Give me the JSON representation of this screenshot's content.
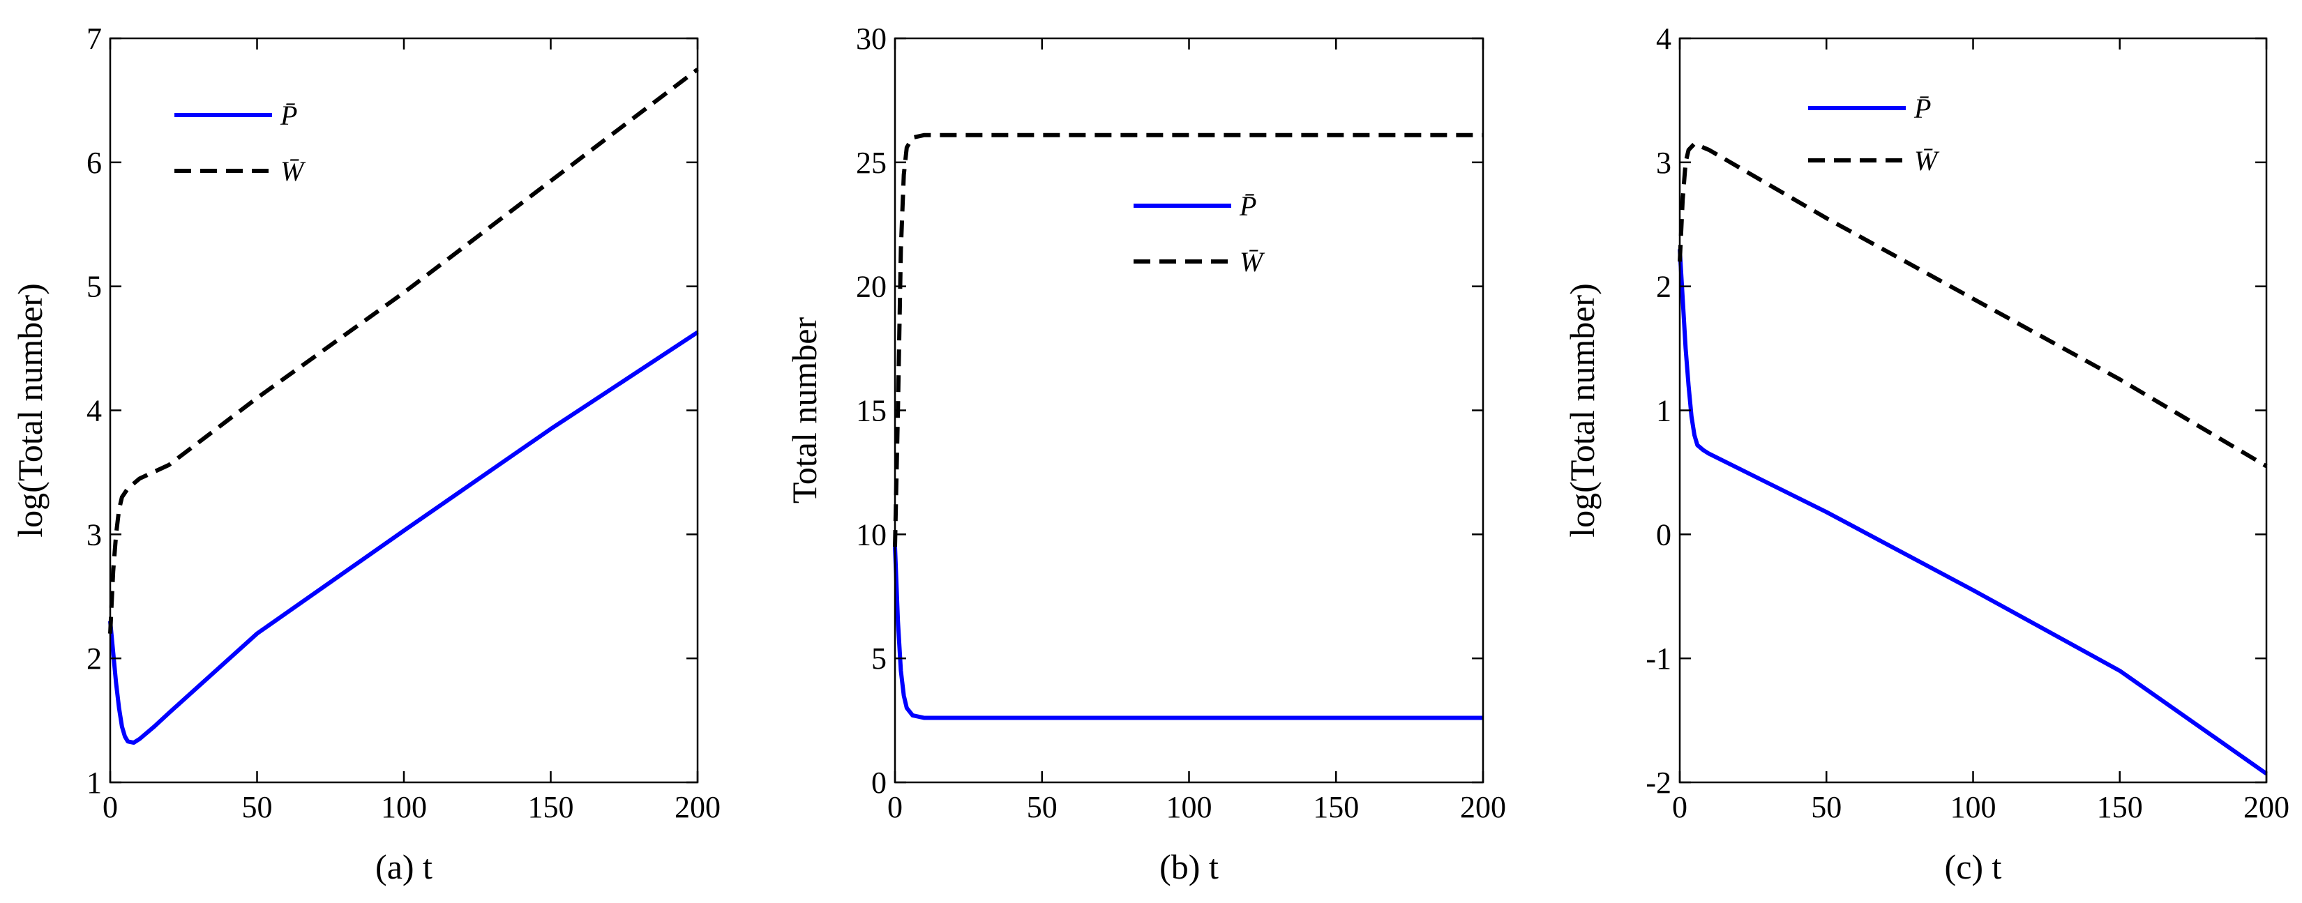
{
  "chart_data": [
    {
      "type": "line",
      "panel_label": "(a)",
      "xlabel": "(a) t",
      "ylabel": "log(Total number)",
      "xlim": [
        0,
        200
      ],
      "ylim": [
        1,
        7
      ],
      "xticks": [
        0,
        50,
        100,
        150,
        200
      ],
      "yticks": [
        1,
        2,
        3,
        4,
        5,
        6,
        7
      ],
      "grid": false,
      "legend_position": "top-left",
      "series": [
        {
          "name": "P̄",
          "color": "#0000ff",
          "style": "solid",
          "points": [
            [
              0,
              2.3
            ],
            [
              1,
              2.05
            ],
            [
              2,
              1.8
            ],
            [
              3,
              1.6
            ],
            [
              4,
              1.45
            ],
            [
              5,
              1.37
            ],
            [
              6,
              1.33
            ],
            [
              8,
              1.32
            ],
            [
              10,
              1.35
            ],
            [
              15,
              1.45
            ],
            [
              20,
              1.56
            ],
            [
              50,
              2.2
            ],
            [
              100,
              3.03
            ],
            [
              150,
              3.85
            ],
            [
              200,
              4.63
            ]
          ]
        },
        {
          "name": "W̄",
          "color": "#000000",
          "style": "dashed",
          "points": [
            [
              0,
              2.2
            ],
            [
              1,
              2.7
            ],
            [
              2,
              3.0
            ],
            [
              3,
              3.2
            ],
            [
              4,
              3.3
            ],
            [
              6,
              3.37
            ],
            [
              10,
              3.45
            ],
            [
              20,
              3.56
            ],
            [
              50,
              4.1
            ],
            [
              100,
              4.95
            ],
            [
              150,
              5.85
            ],
            [
              200,
              6.75
            ]
          ]
        }
      ]
    },
    {
      "type": "line",
      "panel_label": "(b)",
      "xlabel": "(b) t",
      "ylabel": "Total number",
      "xlim": [
        0,
        200
      ],
      "ylim": [
        0,
        30
      ],
      "xticks": [
        0,
        50,
        100,
        150,
        200
      ],
      "yticks": [
        0,
        5,
        10,
        15,
        20,
        25,
        30
      ],
      "grid": false,
      "legend_position": "upper-center",
      "series": [
        {
          "name": "P̄",
          "color": "#0000ff",
          "style": "solid",
          "points": [
            [
              0,
              9.5
            ],
            [
              1,
              6.5
            ],
            [
              2,
              4.5
            ],
            [
              3,
              3.5
            ],
            [
              4,
              3.0
            ],
            [
              6,
              2.7
            ],
            [
              10,
              2.6
            ],
            [
              50,
              2.6
            ],
            [
              100,
              2.6
            ],
            [
              150,
              2.6
            ],
            [
              200,
              2.6
            ]
          ]
        },
        {
          "name": "W̄",
          "color": "#000000",
          "style": "dashed",
          "points": [
            [
              0,
              9.5
            ],
            [
              1,
              15.0
            ],
            [
              2,
              21.5
            ],
            [
              3,
              24.5
            ],
            [
              4,
              25.6
            ],
            [
              6,
              26.0
            ],
            [
              10,
              26.1
            ],
            [
              50,
              26.1
            ],
            [
              100,
              26.1
            ],
            [
              150,
              26.1
            ],
            [
              200,
              26.1
            ]
          ]
        }
      ]
    },
    {
      "type": "line",
      "panel_label": "(c)",
      "xlabel": "(c) t",
      "ylabel": "log(Total number)",
      "xlim": [
        0,
        200
      ],
      "ylim": [
        -2,
        4
      ],
      "xticks": [
        0,
        50,
        100,
        150,
        200
      ],
      "yticks": [
        -2,
        -1,
        0,
        1,
        2,
        3,
        4
      ],
      "grid": false,
      "legend_position": "top-left",
      "series": [
        {
          "name": "P̄",
          "color": "#0000ff",
          "style": "solid",
          "points": [
            [
              0,
              2.3
            ],
            [
              1,
              1.9
            ],
            [
              2,
              1.5
            ],
            [
              3,
              1.2
            ],
            [
              4,
              0.95
            ],
            [
              5,
              0.8
            ],
            [
              6,
              0.72
            ],
            [
              8,
              0.68
            ],
            [
              10,
              0.65
            ],
            [
              50,
              0.18
            ],
            [
              100,
              -0.45
            ],
            [
              150,
              -1.1
            ],
            [
              200,
              -1.93
            ]
          ]
        },
        {
          "name": "W̄",
          "color": "#000000",
          "style": "dashed",
          "points": [
            [
              0,
              2.2
            ],
            [
              1,
              2.7
            ],
            [
              2,
              3.0
            ],
            [
              3,
              3.1
            ],
            [
              5,
              3.15
            ],
            [
              10,
              3.1
            ],
            [
              50,
              2.55
            ],
            [
              100,
              1.9
            ],
            [
              150,
              1.25
            ],
            [
              200,
              0.55
            ]
          ]
        }
      ]
    }
  ]
}
